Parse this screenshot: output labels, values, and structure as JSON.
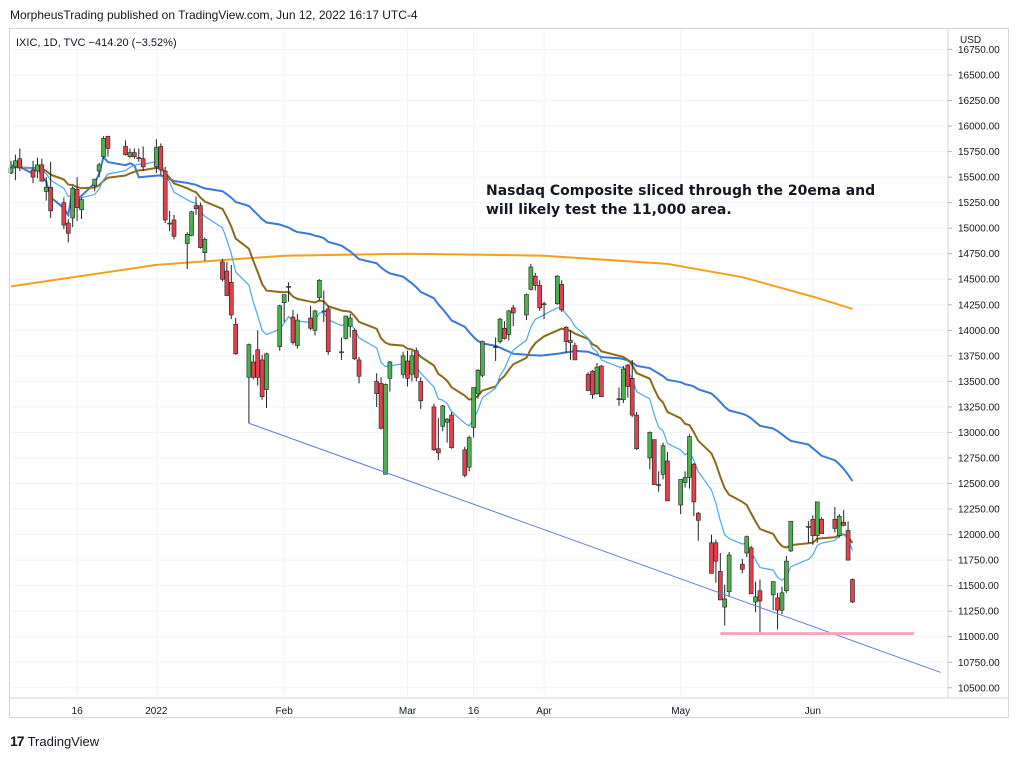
{
  "header": {
    "published_line": "MorpheusTrading published on TradingView.com, Jun 12, 2022 16:17 UTC-4"
  },
  "footer": {
    "logo_glyph": "17",
    "brand": "TradingView"
  },
  "chart_data": {
    "type": "candlestick",
    "legend": "IXIC, 1D, TVC  −414.20 (−3.52%)",
    "currency_label": "USD",
    "ylim": [
      10400,
      16950
    ],
    "y_ticks": [
      "16750.00",
      "16500.00",
      "16250.00",
      "16000.00",
      "15750.00",
      "15500.00",
      "15250.00",
      "15000.00",
      "14750.00",
      "14500.00",
      "14250.00",
      "14000.00",
      "13750.00",
      "13500.00",
      "13250.00",
      "13000.00",
      "12750.00",
      "12500.00",
      "12250.00",
      "12000.00",
      "11750.00",
      "11500.00",
      "11250.00",
      "11000.00",
      "10750.00",
      "10500.00"
    ],
    "x_ticks": [
      {
        "label": "16",
        "date": "2021-12-16"
      },
      {
        "label": "2022",
        "date": "2022-01-03"
      },
      {
        "label": "Feb",
        "date": "2022-02-01"
      },
      {
        "label": "Mar",
        "date": "2022-03-01"
      },
      {
        "label": "16",
        "date": "2022-03-16"
      },
      {
        "label": "Apr",
        "date": "2022-04-01"
      },
      {
        "label": "May",
        "date": "2022-05-02"
      },
      {
        "label": "Jun",
        "date": "2022-06-01"
      }
    ],
    "candles": [
      {
        "date": "2021-12-01",
        "o": 15540,
        "h": 15660,
        "l": 15530,
        "c": 15590
      },
      {
        "date": "2021-12-02",
        "o": 15600,
        "h": 15720,
        "l": 15470,
        "c": 15660
      },
      {
        "date": "2021-12-03",
        "o": 15680,
        "h": 15780,
        "l": 15560,
        "c": 15590
      },
      {
        "date": "2021-12-06",
        "o": 15570,
        "h": 15660,
        "l": 15440,
        "c": 15500
      },
      {
        "date": "2021-12-07",
        "o": 15560,
        "h": 15690,
        "l": 15490,
        "c": 15620
      },
      {
        "date": "2021-12-08",
        "o": 15620,
        "h": 15680,
        "l": 15460,
        "c": 15460
      },
      {
        "date": "2021-12-09",
        "o": 15360,
        "h": 15500,
        "l": 15270,
        "c": 15400
      },
      {
        "date": "2021-12-10",
        "o": 15400,
        "h": 15650,
        "l": 15100,
        "c": 15170
      },
      {
        "date": "2021-12-13",
        "o": 15250,
        "h": 15300,
        "l": 14990,
        "c": 15030
      },
      {
        "date": "2021-12-14",
        "o": 15050,
        "h": 15090,
        "l": 14860,
        "c": 14950
      },
      {
        "date": "2021-12-15",
        "o": 15100,
        "h": 15400,
        "l": 15010,
        "c": 15390
      },
      {
        "date": "2021-12-16",
        "o": 15380,
        "h": 15500,
        "l": 15070,
        "c": 15200
      },
      {
        "date": "2021-12-17",
        "o": 15180,
        "h": 15300,
        "l": 15090,
        "c": 15280
      },
      {
        "date": "2021-12-20",
        "o": 15420,
        "h": 15480,
        "l": 15360,
        "c": 15480
      },
      {
        "date": "2021-12-21",
        "o": 15560,
        "h": 15640,
        "l": 15500,
        "c": 15620
      },
      {
        "date": "2021-12-22",
        "o": 15700,
        "h": 15900,
        "l": 15680,
        "c": 15880
      },
      {
        "date": "2021-12-23",
        "o": 15900,
        "h": 15900,
        "l": 15700,
        "c": 15780
      },
      {
        "date": "2021-12-27",
        "o": 15800,
        "h": 15860,
        "l": 15710,
        "c": 15720
      },
      {
        "date": "2021-12-28",
        "o": 15700,
        "h": 15780,
        "l": 15690,
        "c": 15740
      },
      {
        "date": "2021-12-29",
        "o": 15740,
        "h": 15780,
        "l": 15680,
        "c": 15700
      },
      {
        "date": "2021-12-30",
        "o": 15690,
        "h": 15780,
        "l": 15650,
        "c": 15690
      },
      {
        "date": "2021-12-31",
        "o": 15680,
        "h": 15800,
        "l": 15560,
        "c": 15600
      },
      {
        "date": "2022-01-03",
        "o": 15600,
        "h": 15870,
        "l": 15540,
        "c": 15790
      },
      {
        "date": "2022-01-04",
        "o": 15800,
        "h": 15830,
        "l": 15520,
        "c": 15570
      },
      {
        "date": "2022-01-05",
        "o": 15560,
        "h": 15600,
        "l": 15050,
        "c": 15080
      },
      {
        "date": "2022-01-06",
        "o": 15050,
        "h": 15170,
        "l": 14970,
        "c": 15050
      },
      {
        "date": "2022-01-07",
        "o": 15080,
        "h": 15130,
        "l": 14890,
        "c": 14920
      },
      {
        "date": "2022-01-10",
        "o": 14850,
        "h": 14960,
        "l": 14600,
        "c": 14940
      },
      {
        "date": "2022-01-11",
        "o": 14930,
        "h": 15170,
        "l": 14920,
        "c": 15160
      },
      {
        "date": "2022-01-12",
        "o": 15220,
        "h": 15310,
        "l": 15130,
        "c": 15190
      },
      {
        "date": "2022-01-13",
        "o": 15220,
        "h": 15250,
        "l": 14800,
        "c": 14810
      },
      {
        "date": "2022-01-14",
        "o": 14760,
        "h": 14910,
        "l": 14680,
        "c": 14890
      },
      {
        "date": "2022-01-18",
        "o": 14670,
        "h": 14700,
        "l": 14480,
        "c": 14500
      },
      {
        "date": "2022-01-19",
        "o": 14580,
        "h": 14670,
        "l": 14340,
        "c": 14340
      },
      {
        "date": "2022-01-20",
        "o": 14470,
        "h": 14640,
        "l": 14110,
        "c": 14150
      },
      {
        "date": "2022-01-21",
        "o": 14060,
        "h": 14120,
        "l": 13760,
        "c": 13770
      },
      {
        "date": "2022-01-24",
        "o": 13540,
        "h": 13870,
        "l": 13090,
        "c": 13860
      },
      {
        "date": "2022-01-25",
        "o": 13690,
        "h": 13760,
        "l": 13520,
        "c": 13540
      },
      {
        "date": "2022-01-26",
        "o": 13810,
        "h": 14000,
        "l": 13460,
        "c": 13540
      },
      {
        "date": "2022-01-27",
        "o": 13710,
        "h": 13760,
        "l": 13320,
        "c": 13350
      },
      {
        "date": "2022-01-28",
        "o": 13420,
        "h": 13780,
        "l": 13240,
        "c": 13770
      },
      {
        "date": "2022-01-31",
        "o": 13840,
        "h": 14250,
        "l": 13800,
        "c": 14240
      },
      {
        "date": "2022-02-01",
        "o": 14270,
        "h": 14350,
        "l": 14080,
        "c": 14350
      },
      {
        "date": "2022-02-02",
        "o": 14430,
        "h": 14470,
        "l": 14280,
        "c": 14420
      },
      {
        "date": "2022-02-03",
        "o": 14130,
        "h": 14200,
        "l": 13860,
        "c": 13880
      },
      {
        "date": "2022-02-04",
        "o": 13850,
        "h": 14160,
        "l": 13820,
        "c": 14100
      },
      {
        "date": "2022-02-07",
        "o": 14120,
        "h": 14240,
        "l": 14000,
        "c": 14020
      },
      {
        "date": "2022-02-08",
        "o": 14000,
        "h": 14200,
        "l": 13950,
        "c": 14190
      },
      {
        "date": "2022-02-09",
        "o": 14320,
        "h": 14500,
        "l": 14290,
        "c": 14490
      },
      {
        "date": "2022-02-10",
        "o": 14190,
        "h": 14390,
        "l": 14080,
        "c": 14190
      },
      {
        "date": "2022-02-11",
        "o": 14210,
        "h": 14240,
        "l": 13760,
        "c": 13790
      },
      {
        "date": "2022-02-14",
        "o": 13780,
        "h": 13930,
        "l": 13710,
        "c": 13790
      },
      {
        "date": "2022-02-15",
        "o": 13920,
        "h": 14140,
        "l": 13910,
        "c": 14140
      },
      {
        "date": "2022-02-16",
        "o": 14040,
        "h": 14160,
        "l": 13930,
        "c": 14120
      },
      {
        "date": "2022-02-17",
        "o": 14000,
        "h": 14020,
        "l": 13710,
        "c": 13720
      },
      {
        "date": "2022-02-18",
        "o": 13710,
        "h": 13740,
        "l": 13480,
        "c": 13550
      },
      {
        "date": "2022-02-22",
        "o": 13500,
        "h": 13580,
        "l": 13250,
        "c": 13380
      },
      {
        "date": "2022-02-23",
        "o": 13480,
        "h": 13540,
        "l": 13030,
        "c": 13040
      },
      {
        "date": "2022-02-24",
        "o": 12590,
        "h": 13480,
        "l": 12590,
        "c": 13470
      },
      {
        "date": "2022-02-25",
        "o": 13530,
        "h": 13700,
        "l": 13400,
        "c": 13690
      },
      {
        "date": "2022-02-28",
        "o": 13570,
        "h": 13790,
        "l": 13530,
        "c": 13750
      },
      {
        "date": "2022-03-01",
        "o": 13700,
        "h": 13800,
        "l": 13450,
        "c": 13530
      },
      {
        "date": "2022-03-02",
        "o": 13570,
        "h": 13800,
        "l": 13500,
        "c": 13750
      },
      {
        "date": "2022-03-03",
        "o": 13800,
        "h": 13830,
        "l": 13500,
        "c": 13540
      },
      {
        "date": "2022-03-04",
        "o": 13500,
        "h": 13540,
        "l": 13230,
        "c": 13310
      },
      {
        "date": "2022-03-07",
        "o": 13250,
        "h": 13280,
        "l": 12820,
        "c": 12830
      },
      {
        "date": "2022-03-08",
        "o": 12840,
        "h": 13140,
        "l": 12730,
        "c": 12800
      },
      {
        "date": "2022-03-09",
        "o": 13060,
        "h": 13270,
        "l": 13010,
        "c": 13260
      },
      {
        "date": "2022-03-10",
        "o": 13100,
        "h": 13140,
        "l": 12900,
        "c": 13130
      },
      {
        "date": "2022-03-11",
        "o": 13170,
        "h": 13200,
        "l": 12840,
        "c": 12850
      },
      {
        "date": "2022-03-14",
        "o": 12830,
        "h": 12860,
        "l": 12560,
        "c": 12580
      },
      {
        "date": "2022-03-15",
        "o": 12660,
        "h": 12970,
        "l": 12620,
        "c": 12950
      },
      {
        "date": "2022-03-16",
        "o": 13050,
        "h": 13440,
        "l": 12950,
        "c": 13440
      },
      {
        "date": "2022-03-17",
        "o": 13380,
        "h": 13620,
        "l": 13330,
        "c": 13610
      },
      {
        "date": "2022-03-18",
        "o": 13560,
        "h": 13900,
        "l": 13540,
        "c": 13890
      },
      {
        "date": "2022-03-21",
        "o": 13840,
        "h": 13930,
        "l": 13700,
        "c": 13840
      },
      {
        "date": "2022-03-22",
        "o": 13890,
        "h": 14120,
        "l": 13870,
        "c": 14110
      },
      {
        "date": "2022-03-23",
        "o": 14020,
        "h": 14090,
        "l": 13910,
        "c": 13920
      },
      {
        "date": "2022-03-24",
        "o": 13960,
        "h": 14200,
        "l": 13900,
        "c": 14190
      },
      {
        "date": "2022-03-25",
        "o": 14220,
        "h": 14250,
        "l": 14040,
        "c": 14170
      },
      {
        "date": "2022-03-28",
        "o": 14150,
        "h": 14360,
        "l": 14100,
        "c": 14350
      },
      {
        "date": "2022-03-29",
        "o": 14400,
        "h": 14650,
        "l": 14390,
        "c": 14620
      },
      {
        "date": "2022-03-30",
        "o": 14530,
        "h": 14560,
        "l": 14390,
        "c": 14440
      },
      {
        "date": "2022-03-31",
        "o": 14440,
        "h": 14490,
        "l": 14190,
        "c": 14220
      },
      {
        "date": "2022-04-01",
        "o": 14260,
        "h": 14280,
        "l": 14110,
        "c": 14260
      },
      {
        "date": "2022-04-04",
        "o": 14260,
        "h": 14540,
        "l": 14250,
        "c": 14530
      },
      {
        "date": "2022-04-05",
        "o": 14450,
        "h": 14490,
        "l": 14180,
        "c": 14200
      },
      {
        "date": "2022-04-06",
        "o": 14030,
        "h": 14040,
        "l": 13780,
        "c": 13890
      },
      {
        "date": "2022-04-07",
        "o": 13880,
        "h": 14000,
        "l": 13710,
        "c": 13900
      },
      {
        "date": "2022-04-08",
        "o": 13850,
        "h": 13880,
        "l": 13710,
        "c": 13710
      },
      {
        "date": "2022-04-11",
        "o": 13570,
        "h": 13590,
        "l": 13410,
        "c": 13410
      },
      {
        "date": "2022-04-12",
        "o": 13600,
        "h": 13610,
        "l": 13330,
        "c": 13370
      },
      {
        "date": "2022-04-13",
        "o": 13380,
        "h": 13680,
        "l": 13370,
        "c": 13640
      },
      {
        "date": "2022-04-14",
        "o": 13650,
        "h": 13660,
        "l": 13350,
        "c": 13350
      },
      {
        "date": "2022-04-18",
        "o": 13330,
        "h": 13440,
        "l": 13260,
        "c": 13330
      },
      {
        "date": "2022-04-19",
        "o": 13320,
        "h": 13650,
        "l": 13290,
        "c": 13620
      },
      {
        "date": "2022-04-20",
        "o": 13660,
        "h": 13670,
        "l": 13340,
        "c": 13450
      },
      {
        "date": "2022-04-21",
        "o": 13530,
        "h": 13710,
        "l": 13150,
        "c": 13170
      },
      {
        "date": "2022-04-22",
        "o": 13170,
        "h": 13200,
        "l": 12830,
        "c": 12840
      },
      {
        "date": "2022-04-25",
        "o": 12750,
        "h": 13010,
        "l": 12640,
        "c": 13000
      },
      {
        "date": "2022-04-26",
        "o": 12930,
        "h": 12930,
        "l": 12490,
        "c": 12490
      },
      {
        "date": "2022-04-27",
        "o": 12490,
        "h": 12620,
        "l": 12420,
        "c": 12490
      },
      {
        "date": "2022-04-28",
        "o": 12590,
        "h": 12900,
        "l": 12540,
        "c": 12870
      },
      {
        "date": "2022-04-29",
        "o": 12720,
        "h": 12810,
        "l": 12330,
        "c": 12330
      },
      {
        "date": "2022-05-02",
        "o": 12290,
        "h": 12540,
        "l": 12200,
        "c": 12540
      },
      {
        "date": "2022-05-03",
        "o": 12510,
        "h": 12620,
        "l": 12460,
        "c": 12560
      },
      {
        "date": "2022-05-04",
        "o": 12560,
        "h": 12980,
        "l": 12450,
        "c": 12960
      },
      {
        "date": "2022-05-05",
        "o": 12690,
        "h": 12700,
        "l": 12180,
        "c": 12320
      },
      {
        "date": "2022-05-06",
        "o": 12210,
        "h": 12220,
        "l": 11940,
        "c": 12140
      },
      {
        "date": "2022-05-09",
        "o": 11920,
        "h": 12000,
        "l": 11620,
        "c": 11620
      },
      {
        "date": "2022-05-10",
        "o": 11920,
        "h": 11950,
        "l": 11530,
        "c": 11740
      },
      {
        "date": "2022-05-11",
        "o": 11640,
        "h": 11820,
        "l": 11360,
        "c": 11360
      },
      {
        "date": "2022-05-12",
        "o": 11290,
        "h": 11510,
        "l": 11110,
        "c": 11370
      },
      {
        "date": "2022-05-13",
        "o": 11440,
        "h": 11830,
        "l": 11390,
        "c": 11800
      },
      {
        "date": "2022-05-16",
        "o": 11710,
        "h": 11760,
        "l": 11620,
        "c": 11660
      },
      {
        "date": "2022-05-17",
        "o": 11820,
        "h": 11990,
        "l": 11780,
        "c": 11980
      },
      {
        "date": "2022-05-18",
        "o": 11870,
        "h": 11890,
        "l": 11420,
        "c": 11420
      },
      {
        "date": "2022-05-19",
        "o": 11340,
        "h": 11540,
        "l": 11240,
        "c": 11390
      },
      {
        "date": "2022-05-20",
        "o": 11450,
        "h": 11560,
        "l": 11040,
        "c": 11350
      },
      {
        "date": "2022-05-23",
        "o": 11410,
        "h": 11540,
        "l": 11260,
        "c": 11540
      },
      {
        "date": "2022-05-24",
        "o": 11380,
        "h": 11430,
        "l": 11070,
        "c": 11260
      },
      {
        "date": "2022-05-25",
        "o": 11260,
        "h": 11490,
        "l": 11220,
        "c": 11430
      },
      {
        "date": "2022-05-26",
        "o": 11450,
        "h": 11790,
        "l": 11430,
        "c": 11740
      },
      {
        "date": "2022-05-27",
        "o": 11840,
        "h": 12130,
        "l": 11830,
        "c": 12130
      },
      {
        "date": "2022-05-31",
        "o": 12070,
        "h": 12130,
        "l": 11920,
        "c": 12080
      },
      {
        "date": "2022-06-01",
        "o": 12150,
        "h": 12190,
        "l": 11900,
        "c": 11990
      },
      {
        "date": "2022-06-02",
        "o": 11990,
        "h": 12320,
        "l": 11920,
        "c": 12320
      },
      {
        "date": "2022-06-03",
        "o": 12150,
        "h": 12170,
        "l": 12010,
        "c": 12010
      },
      {
        "date": "2022-06-06",
        "o": 12150,
        "h": 12270,
        "l": 12020,
        "c": 12060
      },
      {
        "date": "2022-06-07",
        "o": 11990,
        "h": 12200,
        "l": 11970,
        "c": 12180
      },
      {
        "date": "2022-06-08",
        "o": 12120,
        "h": 12240,
        "l": 12080,
        "c": 12090
      },
      {
        "date": "2022-06-09",
        "o": 12040,
        "h": 12130,
        "l": 11750,
        "c": 11750
      },
      {
        "date": "2022-06-10",
        "o": 11560,
        "h": 11570,
        "l": 11330,
        "c": 11340
      }
    ],
    "moving_averages": [
      {
        "name": "10 EMA",
        "color": "#4aa8e8"
      },
      {
        "name": "20 EMA",
        "color": "#8b6a1a"
      },
      {
        "name": "50 SMA",
        "color": "#3b78d8"
      },
      {
        "name": "200 SMA",
        "color": "#f6a01a"
      }
    ],
    "ma200_points": [
      [
        "2021-12-01",
        14430
      ],
      [
        "2022-01-03",
        14640
      ],
      [
        "2022-02-01",
        14730
      ],
      [
        "2022-03-01",
        14750
      ],
      [
        "2022-04-01",
        14730
      ],
      [
        "2022-04-29",
        14650
      ],
      [
        "2022-05-16",
        14520
      ],
      [
        "2022-06-01",
        14330
      ],
      [
        "2022-06-10",
        14210
      ]
    ],
    "trendline": {
      "from": [
        "2022-01-24",
        13090
      ],
      "to": [
        "2022-06-30",
        10650
      ]
    },
    "support_line": {
      "from": "2022-05-11",
      "to": "2022-06-24",
      "value": 11030
    },
    "annotation": [
      "Nasdaq Composite sliced through the 20ema and",
      "will likely test the 11,000 area."
    ],
    "colors": {
      "up": "#4caf50",
      "down": "#e0414c",
      "text": "#131722",
      "support": "#f4a7bb",
      "trendline": "#5b7fd6"
    }
  }
}
